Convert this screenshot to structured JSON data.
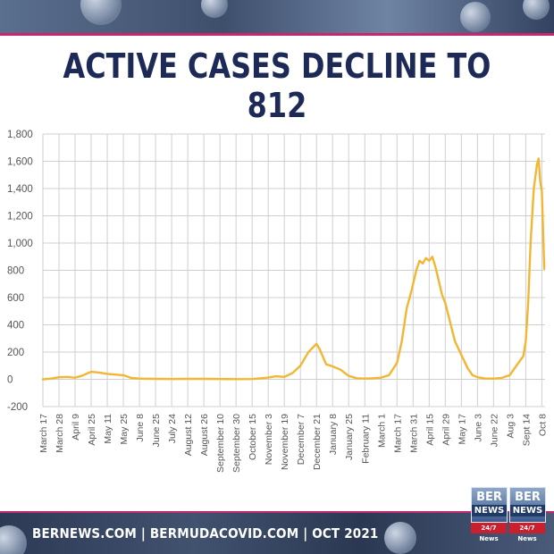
{
  "title": "ACTIVE CASES DECLINE TO 812",
  "footer": "BERNEWS.COM  |  BERMUDACOVID.COM  |  OCT 2021",
  "logo": {
    "line1": "BER",
    "line2": "NEWS",
    "tag": "24/7 News"
  },
  "colors": {
    "line": "#f2b632",
    "title": "#1d2a57",
    "accent": "#c8266e",
    "grid": "#cfcfcf"
  },
  "chart_data": {
    "type": "line",
    "title": "",
    "xlabel": "",
    "ylabel": "",
    "ylim": [
      -200,
      1800
    ],
    "yticks": [
      -200,
      0,
      200,
      400,
      600,
      800,
      1000,
      1200,
      1400,
      1600,
      1800
    ],
    "ytick_labels": [
      "-200",
      "0",
      "200",
      "400",
      "600",
      "800",
      "1,000",
      "1,200",
      "1,400",
      "1,600",
      "1,800"
    ],
    "grid": true,
    "categories": [
      "March 17",
      "March 28",
      "April 9",
      "April 25",
      "May 11",
      "May 25",
      "June 8",
      "June 25",
      "July 24",
      "August 12",
      "August 26",
      "September 10",
      "September 30",
      "October 15",
      "November 3",
      "November 19",
      "December 7",
      "December 21",
      "January 8",
      "January 25",
      "February 11",
      "March 1",
      "March 17",
      "March 31",
      "April 15",
      "April 29",
      "May 17",
      "June 3",
      "June 22",
      "Aug 3",
      "Sept 14",
      "Oct 8"
    ],
    "series": [
      {
        "values": [
          [
            0,
            0
          ],
          [
            0.5,
            5
          ],
          [
            1,
            15
          ],
          [
            1.5,
            18
          ],
          [
            2,
            12
          ],
          [
            2.4,
            25
          ],
          [
            3,
            55
          ],
          [
            3.5,
            50
          ],
          [
            4,
            40
          ],
          [
            4.5,
            35
          ],
          [
            5,
            30
          ],
          [
            5.5,
            10
          ],
          [
            6,
            5
          ],
          [
            7,
            3
          ],
          [
            8,
            2
          ],
          [
            9,
            3
          ],
          [
            10,
            3
          ],
          [
            11,
            2
          ],
          [
            12,
            1
          ],
          [
            13,
            2
          ],
          [
            13.8,
            10
          ],
          [
            14.5,
            22
          ],
          [
            15,
            18
          ],
          [
            15.5,
            45
          ],
          [
            16,
            100
          ],
          [
            16.5,
            200
          ],
          [
            17,
            260
          ],
          [
            17.2,
            220
          ],
          [
            17.6,
            110
          ],
          [
            18,
            95
          ],
          [
            18.5,
            70
          ],
          [
            19,
            25
          ],
          [
            19.5,
            8
          ],
          [
            20,
            5
          ],
          [
            20.5,
            8
          ],
          [
            21,
            12
          ],
          [
            21.5,
            30
          ],
          [
            22,
            120
          ],
          [
            22.3,
            280
          ],
          [
            22.6,
            520
          ],
          [
            22.9,
            650
          ],
          [
            23.2,
            800
          ],
          [
            23.4,
            870
          ],
          [
            23.6,
            850
          ],
          [
            23.8,
            890
          ],
          [
            24,
            870
          ],
          [
            24.2,
            900
          ],
          [
            24.4,
            820
          ],
          [
            24.6,
            720
          ],
          [
            24.8,
            620
          ],
          [
            25,
            560
          ],
          [
            25.3,
            420
          ],
          [
            25.6,
            280
          ],
          [
            26,
            180
          ],
          [
            26.4,
            80
          ],
          [
            26.7,
            30
          ],
          [
            27,
            15
          ],
          [
            27.5,
            5
          ],
          [
            28,
            5
          ],
          [
            28.5,
            10
          ],
          [
            29,
            30
          ],
          [
            29.3,
            80
          ],
          [
            29.6,
            130
          ],
          [
            29.85,
            170
          ],
          [
            30,
            280
          ],
          [
            30.15,
            560
          ],
          [
            30.3,
            1000
          ],
          [
            30.5,
            1400
          ],
          [
            30.7,
            1580
          ],
          [
            30.8,
            1620
          ],
          [
            30.9,
            1450
          ],
          [
            31,
            1380
          ],
          [
            31.1,
            1000
          ],
          [
            31.15,
            812
          ]
        ]
      }
    ]
  }
}
